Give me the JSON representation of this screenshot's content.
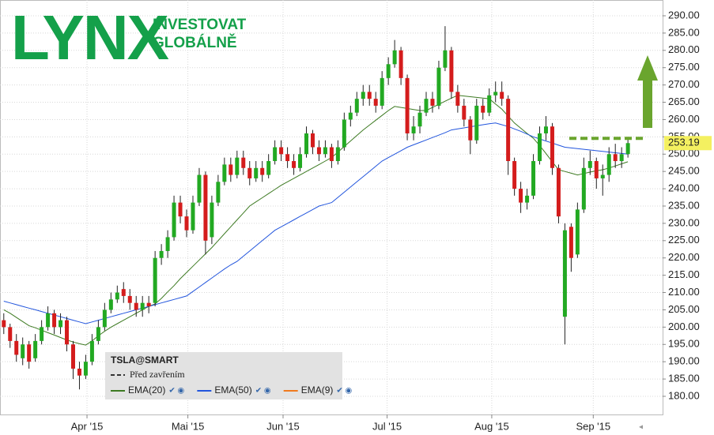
{
  "logo": {
    "name": "LYNX",
    "tagline": [
      "INVESTOVAT",
      "GLOBÁLNĚ"
    ]
  },
  "chart_data": {
    "type": "candlestick",
    "legend_title": "TSLA@SMART",
    "closing_line_label": "Před zavřením",
    "up_color": "#22a922",
    "down_color": "#d41c1c",
    "open": [
      202,
      200,
      196,
      191,
      195,
      191,
      196,
      200,
      204,
      200,
      202,
      195,
      188,
      186,
      190,
      196,
      200,
      205,
      208,
      211,
      209,
      207,
      205,
      207,
      207,
      220,
      222,
      226,
      236,
      232,
      228,
      236,
      244,
      226,
      236,
      242,
      247,
      244,
      249,
      246,
      243,
      246,
      244,
      248,
      252,
      250,
      248,
      246,
      250,
      256,
      252,
      250,
      252,
      248,
      252,
      260,
      262,
      266,
      268,
      266,
      264,
      272,
      276,
      280,
      272,
      256,
      258,
      262,
      266,
      264,
      275,
      280,
      268,
      264,
      260,
      254,
      264,
      262,
      267,
      268,
      266,
      248,
      240,
      236,
      238,
      248,
      256,
      258,
      246,
      203,
      229,
      221,
      234,
      246,
      248,
      243,
      244,
      250,
      248,
      250
    ],
    "high": [
      204,
      201,
      198,
      197,
      196,
      198,
      202,
      206,
      205,
      204,
      203,
      196,
      190,
      192,
      198,
      202,
      207,
      210,
      212,
      213,
      211,
      209,
      209,
      209,
      222,
      224,
      228,
      238,
      238,
      234,
      238,
      246,
      245,
      238,
      244,
      249,
      249,
      251,
      251,
      248,
      248,
      248,
      250,
      254,
      254,
      252,
      250,
      252,
      258,
      257,
      254,
      254,
      253,
      254,
      262,
      264,
      268,
      270,
      270,
      268,
      274,
      278,
      283,
      281,
      273,
      261,
      264,
      268,
      268,
      277,
      287,
      281,
      270,
      266,
      261,
      266,
      266,
      269,
      271,
      271,
      267,
      249,
      242,
      240,
      250,
      258,
      261,
      259,
      247,
      230,
      230,
      236,
      249,
      251,
      249,
      247,
      252,
      253,
      252,
      255
    ],
    "low": [
      198,
      194,
      190,
      189,
      188,
      190,
      195,
      199,
      198,
      198,
      193,
      185,
      182,
      185,
      189,
      195,
      199,
      204,
      207,
      207,
      205,
      203,
      203,
      204,
      206,
      218,
      220,
      225,
      230,
      226,
      227,
      235,
      221,
      224,
      235,
      241,
      242,
      243,
      244,
      241,
      242,
      242,
      243,
      247,
      248,
      246,
      244,
      245,
      249,
      250,
      248,
      249,
      246,
      247,
      251,
      258,
      261,
      264,
      264,
      262,
      263,
      270,
      275,
      270,
      254,
      254,
      256,
      261,
      262,
      263,
      274,
      266,
      262,
      258,
      250,
      253,
      260,
      261,
      265,
      264,
      244,
      238,
      233,
      234,
      237,
      247,
      254,
      244,
      230,
      195,
      216,
      220,
      233,
      244,
      240,
      238,
      242,
      246,
      246,
      249
    ],
    "close": [
      200,
      196,
      192,
      195,
      190,
      196,
      200,
      204,
      200,
      202,
      195,
      188,
      186,
      190,
      196,
      200,
      205,
      208,
      210,
      209,
      207,
      205,
      207,
      206,
      220,
      222,
      226,
      236,
      232,
      228,
      236,
      244,
      225,
      236,
      242,
      247,
      244,
      249,
      246,
      243,
      246,
      244,
      248,
      252,
      250,
      248,
      246,
      250,
      256,
      252,
      250,
      252,
      248,
      252,
      260,
      262,
      266,
      268,
      266,
      264,
      272,
      276,
      280,
      272,
      256,
      258,
      262,
      266,
      264,
      275,
      280,
      268,
      264,
      260,
      254,
      264,
      262,
      267,
      268,
      266,
      248,
      240,
      236,
      238,
      248,
      256,
      258,
      246,
      232,
      228,
      220,
      234,
      246,
      248,
      243,
      244,
      250,
      248,
      250,
      253.19
    ],
    "series": [
      {
        "name": "EMA(20)",
        "color": "#3d7a22",
        "values": [
          205,
          204,
          202.8,
          201.6,
          200.4,
          199.8,
          199.1,
          198.4,
          197.7,
          197,
          196.3,
          195.7,
          195.2,
          194.8,
          196,
          197.5,
          198.8,
          200,
          201,
          202,
          203,
          204,
          205,
          206,
          206.7,
          208.3,
          210.2,
          212,
          214,
          215.8,
          217.6,
          219.4,
          221.2,
          223,
          225,
          227,
          229,
          231,
          233,
          235,
          236.2,
          237.4,
          238.6,
          239.8,
          241,
          242,
          243,
          244,
          245,
          246,
          247,
          248,
          249,
          250.6,
          252.2,
          253.8,
          255.4,
          257,
          258.4,
          259.8,
          261.2,
          262.6,
          263.8,
          263.5,
          263.2,
          262.9,
          262.6,
          262.6,
          263.5,
          264.4,
          265.3,
          266.2,
          267,
          266.8,
          266.6,
          266.4,
          266.2,
          266,
          264.5,
          263,
          261,
          259,
          257.5,
          256,
          254.6,
          252.5,
          250.2,
          247.8,
          245.5,
          245,
          244.5,
          244,
          244.4,
          244.8,
          245.2,
          245.5,
          246,
          246.6,
          247.2,
          247.8
        ]
      },
      {
        "name": "EMA(50)",
        "color": "#2255dd",
        "values": [
          207.5,
          207,
          206.5,
          206,
          205.5,
          205,
          204.5,
          204,
          203.5,
          203,
          202.5,
          202,
          201.5,
          201,
          201.5,
          202,
          202.5,
          203,
          203.5,
          204,
          204.5,
          205,
          205.5,
          206,
          206.5,
          207,
          207.5,
          208,
          208.5,
          209,
          210.3,
          211.6,
          212.9,
          214.2,
          215.5,
          216.8,
          218,
          219,
          220.5,
          222,
          223.5,
          225,
          226.5,
          228,
          229,
          230,
          231,
          232,
          233,
          234,
          235,
          235.5,
          236,
          237.5,
          239,
          240.5,
          242,
          243.5,
          245,
          246.5,
          248,
          249,
          250,
          251,
          252,
          252.7,
          253.4,
          254.1,
          254.8,
          255.5,
          256.2,
          257,
          257.3,
          257.6,
          257.9,
          258.2,
          258.5,
          258.8,
          259,
          258.5,
          258,
          257.3,
          256.6,
          255.8,
          255,
          254.4,
          253.8,
          253.2,
          252.6,
          252,
          251.8,
          251.6,
          251.4,
          251.2,
          251,
          250.8,
          250.6,
          250.4,
          250.2,
          250
        ]
      },
      {
        "name": "EMA(9)",
        "color": "#f07a1e"
      }
    ],
    "xlim": [
      -0.6,
      104.5
    ],
    "xticks": [
      {
        "value": 13.2,
        "label": "Apr '15"
      },
      {
        "value": 29.2,
        "label": "Mai '15"
      },
      {
        "value": 44.3,
        "label": "Jun '15"
      },
      {
        "value": 60.8,
        "label": "Jul '15"
      },
      {
        "value": 77.4,
        "label": "Aug '15"
      },
      {
        "value": 93.5,
        "label": "Sep '15"
      }
    ],
    "ylim": [
      174.75,
      294.56
    ],
    "yticks": [
      {
        "value": 180,
        "label": "180.00"
      },
      {
        "value": 185,
        "label": "185.00"
      },
      {
        "value": 190,
        "label": "190.00"
      },
      {
        "value": 195,
        "label": "195.00"
      },
      {
        "value": 200,
        "label": "200.00"
      },
      {
        "value": 205,
        "label": "205.00"
      },
      {
        "value": 210,
        "label": "210.00"
      },
      {
        "value": 215,
        "label": "215.00"
      },
      {
        "value": 220,
        "label": "220.00"
      },
      {
        "value": 225,
        "label": "225.00"
      },
      {
        "value": 230,
        "label": "230.00"
      },
      {
        "value": 235,
        "label": "235.00"
      },
      {
        "value": 240,
        "label": "240.00"
      },
      {
        "value": 245,
        "label": "245.00"
      },
      {
        "value": 250,
        "label": "250.00"
      },
      {
        "value": 255,
        "label": "255.00"
      },
      {
        "value": 260,
        "label": "260.00"
      },
      {
        "value": 265,
        "label": "265.00"
      },
      {
        "value": 270,
        "label": "270.00"
      },
      {
        "value": 275,
        "label": "275.00"
      },
      {
        "value": 280,
        "label": "280.00"
      },
      {
        "value": 285,
        "label": "285.00"
      },
      {
        "value": 290,
        "label": "290.00"
      }
    ],
    "grid": true
  }
}
